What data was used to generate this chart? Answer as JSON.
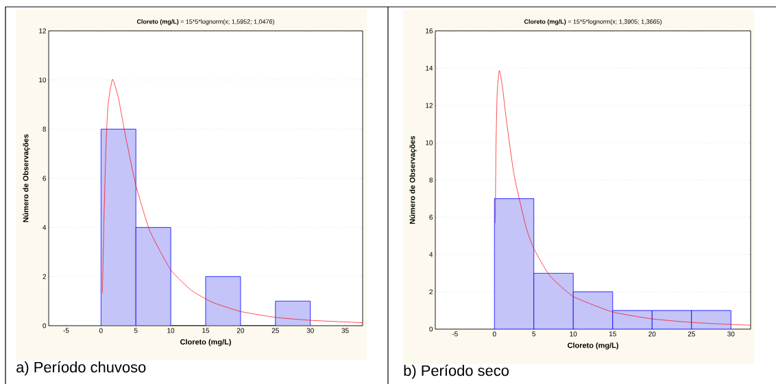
{
  "chart_data": [
    {
      "type": "histogram",
      "title": "**Cloreto (mg/L)** = 15*5*lognorm(x; 1,5952; 1,0476)",
      "xlabel": "Cloreto (mg/L)",
      "ylabel": "Número de Observações",
      "annotations": [
        "a) Período chuvoso"
      ],
      "xlim": [
        -7.5,
        37.5
      ],
      "ylim": [
        0,
        12
      ],
      "xticks": [
        -5,
        0,
        5,
        10,
        15,
        20,
        25,
        30,
        35
      ],
      "yticks": [
        0,
        2,
        4,
        6,
        8,
        10,
        12
      ],
      "grid": "y",
      "series": [
        {
          "type": "histogram",
          "color": "#c4c4f8",
          "bins": [
            0,
            5,
            10,
            15,
            20,
            25,
            30
          ],
          "values": [
            8,
            4,
            0,
            2,
            0,
            1
          ]
        },
        {
          "type": "line",
          "color": "#ff0000",
          "x": [
            0.2,
            0.4,
            0.7,
            1,
            1.645,
            2.5,
            3.5,
            5,
            7,
            10,
            13,
            16,
            20,
            25,
            30,
            37.5
          ],
          "values": [
            1.33,
            4.03,
            7.19,
            8.96,
            10.03,
            9.26,
            7.74,
            5.71,
            3.86,
            2.27,
            1.43,
            0.95,
            0.58,
            0.34,
            0.22,
            0.12
          ]
        }
      ]
    },
    {
      "type": "histogram",
      "title": "**Cloreto (mg/L)** = 15*5*lognorm(x; 1,3905; 1,3665)",
      "xlabel": "Cloreto (mg/L)",
      "ylabel": "Número de Observações",
      "annotations": [
        "b) Período seco"
      ],
      "xlim": [
        -7.5,
        32.5
      ],
      "ylim": [
        0,
        16
      ],
      "xticks": [
        -5,
        0,
        5,
        10,
        15,
        20,
        25,
        30
      ],
      "yticks": [
        0,
        2,
        4,
        6,
        8,
        10,
        12,
        14,
        16
      ],
      "grid": "y",
      "series": [
        {
          "type": "histogram",
          "color": "#c4c4f8",
          "bins": [
            0,
            5,
            10,
            15,
            20,
            25,
            30
          ],
          "values": [
            7,
            3,
            2,
            1,
            1,
            1
          ]
        },
        {
          "type": "line",
          "color": "#ff0000",
          "x": [
            0.1,
            0.2,
            0.35,
            0.62,
            1,
            1.5,
            2.5,
            4,
            5,
            7,
            10,
            15,
            20,
            25,
            30,
            32.5
          ],
          "values": [
            5.68,
            9.83,
            12.71,
            13.87,
            13.05,
            11.26,
            8.25,
            5.48,
            4.32,
            2.88,
            1.75,
            0.92,
            0.55,
            0.36,
            0.25,
            0.21
          ]
        }
      ]
    }
  ]
}
